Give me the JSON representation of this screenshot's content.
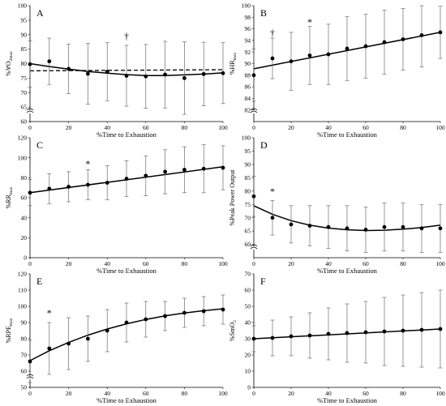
{
  "panels": [
    {
      "id": "A",
      "label": "A",
      "type": "scatter",
      "ylabel_main": "%VO",
      "ylabel_sub": "2max",
      "ylabel_dot": true,
      "xlabel": "%Time to Exhaustion",
      "xlim": [
        0,
        100
      ],
      "ylim": [
        60,
        100
      ],
      "yticks": [
        60,
        65,
        70,
        75,
        80,
        85,
        90,
        95,
        100
      ],
      "xticks": [
        0,
        20,
        40,
        60,
        80,
        100
      ],
      "axis_break": true,
      "x": [
        0,
        10,
        20,
        30,
        40,
        50,
        60,
        70,
        80,
        90,
        100
      ],
      "y": [
        79.8,
        80.8,
        78.2,
        76.5,
        77.2,
        75.8,
        75.6,
        76.2,
        75.0,
        76.4,
        76.7
      ],
      "err": [
        8.0,
        8.0,
        8.5,
        10.5,
        10.0,
        10.5,
        11.0,
        11.5,
        12.5,
        11.0,
        10.5
      ],
      "fit_solid": [
        [
          0,
          80.0
        ],
        [
          10,
          79.0
        ],
        [
          20,
          78.1
        ],
        [
          30,
          77.3
        ],
        [
          40,
          76.7
        ],
        [
          50,
          76.2
        ],
        [
          60,
          75.9
        ],
        [
          70,
          75.9
        ],
        [
          80,
          76.1
        ],
        [
          90,
          76.4
        ],
        [
          100,
          76.8
        ]
      ],
      "fit_dashed": [
        [
          0,
          77.5
        ],
        [
          100,
          77.9
        ]
      ],
      "markers": [
        {
          "x": 50,
          "y": 89.5,
          "symbol": "†"
        }
      ]
    },
    {
      "id": "B",
      "label": "B",
      "type": "scatter",
      "ylabel_main": "%HR",
      "ylabel_sub": "max",
      "ylabel_dot": false,
      "xlabel": "%Time to Exhaustion",
      "xlim": [
        0,
        100
      ],
      "ylim": [
        80,
        100
      ],
      "yticks": [
        82,
        84,
        86,
        88,
        90,
        92,
        94,
        96,
        98,
        100
      ],
      "xticks": [
        0,
        20,
        40,
        60,
        80,
        100
      ],
      "axis_break": true,
      "x": [
        0,
        10,
        20,
        30,
        40,
        50,
        60,
        70,
        80,
        90,
        100
      ],
      "y": [
        88.0,
        90.9,
        90.4,
        91.4,
        91.6,
        92.6,
        93.0,
        93.7,
        94.2,
        94.9,
        95.4
      ],
      "err": [
        4.5,
        3.5,
        5.0,
        5.0,
        5.2,
        5.5,
        5.5,
        5.5,
        5.3,
        5.5,
        4.5
      ],
      "fit_solid": [
        [
          0,
          89.1
        ],
        [
          100,
          95.4
        ]
      ],
      "fit_dashed": [],
      "markers": [
        {
          "x": 10,
          "y": 95.3,
          "symbol": "†"
        },
        {
          "x": 30,
          "y": 97.2,
          "symbol": "*"
        }
      ]
    },
    {
      "id": "C",
      "label": "C",
      "type": "scatter",
      "ylabel_main": "%RR",
      "ylabel_sub": "max",
      "ylabel_dot": false,
      "xlabel": "%Time to Exhaustion",
      "xlim": [
        0,
        100
      ],
      "ylim": [
        0,
        120
      ],
      "yticks": [
        0,
        20,
        40,
        60,
        80,
        100,
        120
      ],
      "xticks": [
        0,
        20,
        40,
        60,
        80,
        100
      ],
      "axis_break": false,
      "x": [
        0,
        10,
        20,
        30,
        40,
        50,
        60,
        70,
        80,
        90,
        100
      ],
      "y": [
        65,
        69,
        71,
        73,
        75,
        79,
        82,
        86,
        88,
        89,
        90
      ],
      "err": [
        13,
        15,
        15,
        15,
        17,
        18,
        20,
        22,
        23,
        24,
        22
      ],
      "fit_solid": [
        [
          0,
          65
        ],
        [
          100,
          91
        ]
      ],
      "fit_dashed": [],
      "markers": [
        {
          "x": 30,
          "y": 94,
          "symbol": "*"
        }
      ]
    },
    {
      "id": "D",
      "label": "D",
      "type": "scatter",
      "ylabel_main": "%Peak Power Output",
      "ylabel_sub": "",
      "ylabel_dot": false,
      "xlabel": "%Time to Exhaustion",
      "xlim": [
        0,
        100
      ],
      "ylim": [
        55,
        100
      ],
      "yticks": [
        60,
        65,
        70,
        75,
        80,
        85,
        90,
        95,
        100
      ],
      "xticks": [
        0,
        20,
        40,
        60,
        80,
        100
      ],
      "axis_break": true,
      "x": [
        0,
        10,
        20,
        30,
        40,
        50,
        60,
        70,
        80,
        90,
        100
      ],
      "y": [
        78,
        70,
        67.5,
        67,
        66.5,
        66,
        65.5,
        66.5,
        66.5,
        66,
        66
      ],
      "err": [
        7.5,
        6.5,
        7.0,
        7.5,
        8.0,
        8.5,
        8.5,
        9.0,
        9.0,
        9.0,
        9.0
      ],
      "fit_solid": [
        [
          0,
          74.5
        ],
        [
          10,
          71.3
        ],
        [
          20,
          68.9
        ],
        [
          30,
          67.2
        ],
        [
          40,
          66.1
        ],
        [
          50,
          65.5
        ],
        [
          60,
          65.2
        ],
        [
          70,
          65.3
        ],
        [
          80,
          65.7
        ],
        [
          90,
          66.3
        ],
        [
          100,
          67.2
        ]
      ],
      "fit_dashed": [],
      "markers": [
        {
          "x": 10,
          "y": 80,
          "symbol": "*"
        }
      ]
    },
    {
      "id": "E",
      "label": "E",
      "type": "scatter",
      "ylabel_main": "%RPE",
      "ylabel_sub": "max",
      "ylabel_dot": false,
      "xlabel": "%Time to Exhaustion",
      "xlim": [
        0,
        100
      ],
      "ylim": [
        50,
        120
      ],
      "yticks": [
        50,
        60,
        70,
        80,
        90,
        100,
        110,
        120
      ],
      "xticks": [
        0,
        20,
        40,
        60,
        80,
        100
      ],
      "axis_break": true,
      "x": [
        0,
        10,
        20,
        30,
        40,
        50,
        60,
        70,
        80,
        90,
        100
      ],
      "y": [
        66,
        74,
        77,
        80,
        85,
        90,
        92,
        94,
        96,
        97,
        98
      ],
      "err": [
        13,
        16,
        16,
        14,
        13,
        12,
        11,
        9,
        9,
        9,
        9
      ],
      "fit_solid": [
        [
          0,
          66.5
        ],
        [
          10,
          72.6
        ],
        [
          20,
          77.7
        ],
        [
          30,
          82.2
        ],
        [
          40,
          86.0
        ],
        [
          50,
          89.2
        ],
        [
          60,
          91.9
        ],
        [
          70,
          94.1
        ],
        [
          80,
          95.9
        ],
        [
          90,
          97.3
        ],
        [
          100,
          98.5
        ]
      ],
      "fit_dashed": [],
      "markers": [
        {
          "x": 10,
          "y": 96,
          "symbol": "*"
        }
      ]
    },
    {
      "id": "F",
      "label": "F",
      "type": "scatter",
      "ylabel_main": "%SmO",
      "ylabel_sub": "2",
      "ylabel_dot": false,
      "xlabel": "%Time to Exhaustion",
      "xlim": [
        0,
        100
      ],
      "ylim": [
        0,
        70
      ],
      "yticks": [
        0,
        10,
        20,
        30,
        40,
        50,
        60,
        70
      ],
      "xticks": [
        0,
        20,
        40,
        60,
        80,
        100
      ],
      "axis_break": false,
      "x": [
        0,
        10,
        20,
        30,
        40,
        50,
        60,
        70,
        80,
        90,
        100
      ],
      "y": [
        30,
        30.5,
        31.5,
        32,
        33,
        33.5,
        34,
        34.5,
        35,
        35.5,
        36
      ],
      "err": [
        8,
        11,
        12,
        14,
        16,
        18,
        19,
        21,
        22,
        23,
        24
      ],
      "fit_solid": [
        [
          0,
          30
        ],
        [
          100,
          36
        ]
      ],
      "fit_dashed": [],
      "markers": []
    }
  ]
}
